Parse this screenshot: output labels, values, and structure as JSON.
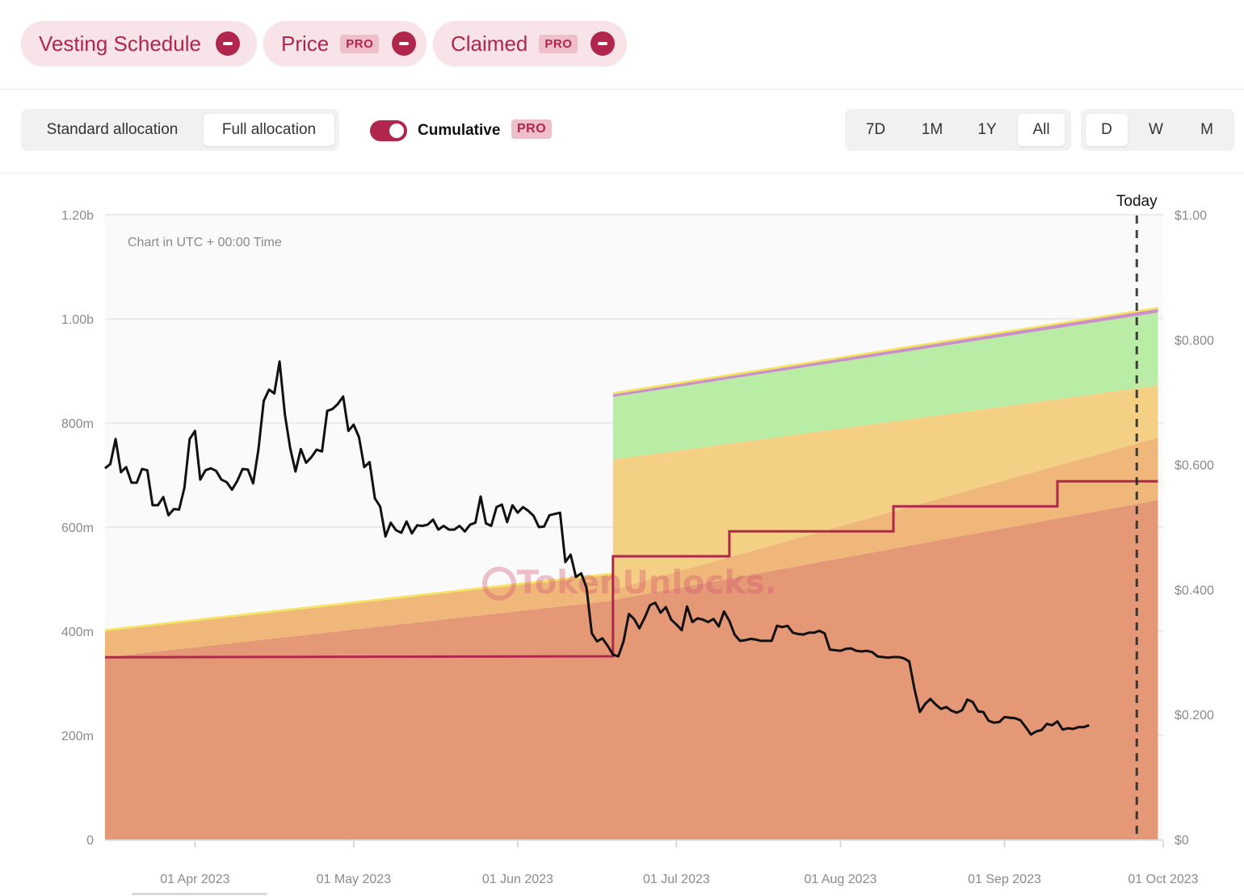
{
  "filters": {
    "chips": [
      {
        "label": "Vesting Schedule",
        "pro": false
      },
      {
        "label": "Price",
        "pro": true
      },
      {
        "label": "Claimed",
        "pro": true
      }
    ],
    "pro_label": "PRO"
  },
  "controls": {
    "allocation_tabs": [
      {
        "label": "Standard allocation",
        "active": false
      },
      {
        "label": "Full allocation",
        "active": true
      }
    ],
    "cumulative": {
      "label": "Cumulative",
      "on": true,
      "badge": "PRO"
    },
    "range_tabs": [
      {
        "label": "7D",
        "active": false
      },
      {
        "label": "1M",
        "active": false
      },
      {
        "label": "1Y",
        "active": false
      },
      {
        "label": "All",
        "active": true
      }
    ],
    "interval_tabs": [
      {
        "label": "D",
        "active": true
      },
      {
        "label": "W",
        "active": false
      },
      {
        "label": "M",
        "active": false
      }
    ]
  },
  "watermark": "TokenUnlocks.",
  "chart_data": {
    "type": "area",
    "note_text": "Chart in UTC + 00:00 Time",
    "today_label": "Today",
    "today_date": "2023-09-26",
    "x_range": [
      "2023-03-15",
      "2023-10-01"
    ],
    "x_ticks": [
      "01 Apr 2023",
      "01 May 2023",
      "01 Jun 2023",
      "01 Jul 2023",
      "01 Aug 2023",
      "01 Sep 2023",
      "01 Oct 2023"
    ],
    "x_tick_dates": [
      "2023-04-01",
      "2023-05-01",
      "2023-06-01",
      "2023-07-01",
      "2023-08-01",
      "2023-09-01",
      "2023-10-01"
    ],
    "y_left": {
      "ticks": [
        "0",
        "200m",
        "400m",
        "600m",
        "800m",
        "1.00b",
        "1.20b"
      ],
      "range": [
        0,
        1200000000
      ]
    },
    "y_right": {
      "ticks": [
        "$0",
        "$0.200",
        "$0.400",
        "$0.600",
        "$0.800",
        "$1.00"
      ],
      "range": [
        0,
        1.0
      ]
    },
    "grid": true,
    "stacked_areas": [
      {
        "color": "#e59876",
        "points": [
          [
            "2023-03-15",
            350000000
          ],
          [
            "2023-06-19",
            460000000
          ],
          [
            "2023-09-30",
            652000000
          ]
        ]
      },
      {
        "color": "#f0b77a",
        "points": [
          [
            "2023-03-15",
            50000000
          ],
          [
            "2023-06-18",
            50000000
          ],
          [
            "2023-06-19",
            20000000
          ],
          [
            "2023-09-30",
            120000000
          ]
        ]
      },
      {
        "color": "#f3d083",
        "points": [
          [
            "2023-03-15",
            0
          ],
          [
            "2023-06-18",
            0
          ],
          [
            "2023-06-19",
            250000000
          ],
          [
            "2023-09-30",
            100000000
          ]
        ]
      },
      {
        "color": "#b9eca5",
        "points": [
          [
            "2023-03-15",
            0
          ],
          [
            "2023-06-18",
            0
          ],
          [
            "2023-06-19",
            120000000
          ],
          [
            "2023-09-30",
            140000000
          ]
        ]
      },
      {
        "color": "#c991c8",
        "points": [
          [
            "2023-03-15",
            0
          ],
          [
            "2023-06-18",
            0
          ],
          [
            "2023-06-19",
            5000000
          ],
          [
            "2023-09-30",
            7000000
          ]
        ]
      },
      {
        "color": "#f6e45e",
        "points": [
          [
            "2023-03-15",
            4000000
          ],
          [
            "2023-09-30",
            4000000
          ]
        ]
      }
    ],
    "claimed_step": {
      "color": "#b0264d",
      "points": [
        [
          "2023-03-15",
          350000000
        ],
        [
          "2023-06-19",
          352000000
        ],
        [
          "2023-06-19",
          544000000
        ],
        [
          "2023-07-11",
          544000000
        ],
        [
          "2023-07-11",
          592000000
        ],
        [
          "2023-08-11",
          592000000
        ],
        [
          "2023-08-11",
          640000000
        ],
        [
          "2023-09-11",
          640000000
        ],
        [
          "2023-09-11",
          688000000
        ],
        [
          "2023-09-30",
          688000000
        ]
      ]
    },
    "price_series": {
      "color": "#111111",
      "points": [
        [
          "2023-03-15",
          0.594
        ],
        [
          "2023-03-16",
          0.601
        ],
        [
          "2023-03-17",
          0.641
        ],
        [
          "2023-03-18",
          0.588
        ],
        [
          "2023-03-19",
          0.596
        ],
        [
          "2023-03-20",
          0.571
        ],
        [
          "2023-03-21",
          0.571
        ],
        [
          "2023-03-22",
          0.593
        ],
        [
          "2023-03-23",
          0.591
        ],
        [
          "2023-03-24",
          0.535
        ],
        [
          "2023-03-25",
          0.535
        ],
        [
          "2023-03-26",
          0.548
        ],
        [
          "2023-03-27",
          0.519
        ],
        [
          "2023-03-28",
          0.529
        ],
        [
          "2023-03-29",
          0.528
        ],
        [
          "2023-03-30",
          0.563
        ],
        [
          "2023-03-31",
          0.641
        ],
        [
          "2023-04-01",
          0.654
        ],
        [
          "2023-04-02",
          0.576
        ],
        [
          "2023-04-03",
          0.591
        ],
        [
          "2023-04-04",
          0.594
        ],
        [
          "2023-04-05",
          0.59
        ],
        [
          "2023-04-06",
          0.576
        ],
        [
          "2023-04-07",
          0.572
        ],
        [
          "2023-04-08",
          0.56
        ],
        [
          "2023-04-09",
          0.574
        ],
        [
          "2023-04-10",
          0.593
        ],
        [
          "2023-04-11",
          0.592
        ],
        [
          "2023-04-12",
          0.57
        ],
        [
          "2023-04-13",
          0.624
        ],
        [
          "2023-04-14",
          0.702
        ],
        [
          "2023-04-15",
          0.72
        ],
        [
          "2023-04-16",
          0.714
        ],
        [
          "2023-04-17",
          0.765
        ],
        [
          "2023-04-18",
          0.68
        ],
        [
          "2023-04-19",
          0.626
        ],
        [
          "2023-04-20",
          0.589
        ],
        [
          "2023-04-21",
          0.625
        ],
        [
          "2023-04-22",
          0.603
        ],
        [
          "2023-04-23",
          0.612
        ],
        [
          "2023-04-24",
          0.624
        ],
        [
          "2023-04-25",
          0.621
        ],
        [
          "2023-04-26",
          0.686
        ],
        [
          "2023-04-27",
          0.689
        ],
        [
          "2023-04-28",
          0.697
        ],
        [
          "2023-04-29",
          0.709
        ],
        [
          "2023-04-30",
          0.654
        ],
        [
          "2023-05-01",
          0.664
        ],
        [
          "2023-05-02",
          0.644
        ],
        [
          "2023-05-03",
          0.596
        ],
        [
          "2023-05-04",
          0.604
        ],
        [
          "2023-05-05",
          0.546
        ],
        [
          "2023-05-06",
          0.533
        ],
        [
          "2023-05-07",
          0.485
        ],
        [
          "2023-05-08",
          0.507
        ],
        [
          "2023-05-09",
          0.495
        ],
        [
          "2023-05-10",
          0.491
        ],
        [
          "2023-05-11",
          0.509
        ],
        [
          "2023-05-12",
          0.49
        ],
        [
          "2023-05-13",
          0.503
        ],
        [
          "2023-05-14",
          0.502
        ],
        [
          "2023-05-15",
          0.504
        ],
        [
          "2023-05-16",
          0.512
        ],
        [
          "2023-05-17",
          0.496
        ],
        [
          "2023-05-18",
          0.502
        ],
        [
          "2023-05-19",
          0.496
        ],
        [
          "2023-05-20",
          0.496
        ],
        [
          "2023-05-21",
          0.502
        ],
        [
          "2023-05-22",
          0.493
        ],
        [
          "2023-05-23",
          0.504
        ],
        [
          "2023-05-24",
          0.507
        ],
        [
          "2023-05-25",
          0.549
        ],
        [
          "2023-05-26",
          0.506
        ],
        [
          "2023-05-27",
          0.502
        ],
        [
          "2023-05-28",
          0.532
        ],
        [
          "2023-05-29",
          0.536
        ],
        [
          "2023-05-30",
          0.508
        ],
        [
          "2023-05-31",
          0.535
        ],
        [
          "2023-06-01",
          0.523
        ],
        [
          "2023-06-02",
          0.532
        ],
        [
          "2023-06-03",
          0.526
        ],
        [
          "2023-06-04",
          0.518
        ],
        [
          "2023-06-05",
          0.5
        ],
        [
          "2023-06-06",
          0.501
        ],
        [
          "2023-06-07",
          0.519
        ],
        [
          "2023-06-08",
          0.521
        ],
        [
          "2023-06-09",
          0.523
        ],
        [
          "2023-06-10",
          0.444
        ],
        [
          "2023-06-11",
          0.456
        ],
        [
          "2023-06-12",
          0.42
        ],
        [
          "2023-06-13",
          0.426
        ],
        [
          "2023-06-14",
          0.403
        ],
        [
          "2023-06-15",
          0.33
        ],
        [
          "2023-06-16",
          0.317
        ],
        [
          "2023-06-17",
          0.322
        ],
        [
          "2023-06-18",
          0.31
        ],
        [
          "2023-06-19",
          0.296
        ],
        [
          "2023-06-20",
          0.293
        ],
        [
          "2023-06-21",
          0.317
        ],
        [
          "2023-06-22",
          0.361
        ],
        [
          "2023-06-23",
          0.353
        ],
        [
          "2023-06-24",
          0.338
        ],
        [
          "2023-06-25",
          0.355
        ],
        [
          "2023-06-26",
          0.375
        ],
        [
          "2023-06-27",
          0.379
        ],
        [
          "2023-06-28",
          0.363
        ],
        [
          "2023-06-29",
          0.372
        ],
        [
          "2023-06-30",
          0.352
        ],
        [
          "2023-07-01",
          0.344
        ],
        [
          "2023-07-02",
          0.335
        ],
        [
          "2023-07-03",
          0.373
        ],
        [
          "2023-07-04",
          0.348
        ],
        [
          "2023-07-05",
          0.354
        ],
        [
          "2023-07-06",
          0.352
        ],
        [
          "2023-07-07",
          0.348
        ],
        [
          "2023-07-08",
          0.353
        ],
        [
          "2023-07-09",
          0.341
        ],
        [
          "2023-07-10",
          0.365
        ],
        [
          "2023-07-11",
          0.35
        ],
        [
          "2023-07-12",
          0.328
        ],
        [
          "2023-07-13",
          0.318
        ],
        [
          "2023-07-14",
          0.319
        ],
        [
          "2023-07-15",
          0.321
        ],
        [
          "2023-07-16",
          0.32
        ],
        [
          "2023-07-17",
          0.318
        ],
        [
          "2023-07-18",
          0.318
        ],
        [
          "2023-07-19",
          0.318
        ],
        [
          "2023-07-20",
          0.342
        ],
        [
          "2023-07-21",
          0.34
        ],
        [
          "2023-07-22",
          0.342
        ],
        [
          "2023-07-23",
          0.331
        ],
        [
          "2023-07-24",
          0.329
        ],
        [
          "2023-07-25",
          0.328
        ],
        [
          "2023-07-26",
          0.331
        ],
        [
          "2023-07-27",
          0.331
        ],
        [
          "2023-07-28",
          0.334
        ],
        [
          "2023-07-29",
          0.33
        ],
        [
          "2023-07-30",
          0.304
        ],
        [
          "2023-07-31",
          0.303
        ],
        [
          "2023-08-01",
          0.302
        ],
        [
          "2023-08-02",
          0.305
        ],
        [
          "2023-08-03",
          0.306
        ],
        [
          "2023-08-04",
          0.302
        ],
        [
          "2023-08-05",
          0.301
        ],
        [
          "2023-08-06",
          0.302
        ],
        [
          "2023-08-07",
          0.3
        ],
        [
          "2023-08-08",
          0.293
        ],
        [
          "2023-08-09",
          0.292
        ],
        [
          "2023-08-10",
          0.291
        ],
        [
          "2023-08-11",
          0.292
        ],
        [
          "2023-08-12",
          0.292
        ],
        [
          "2023-08-13",
          0.29
        ],
        [
          "2023-08-14",
          0.285
        ],
        [
          "2023-08-15",
          0.24
        ],
        [
          "2023-08-16",
          0.204
        ],
        [
          "2023-08-17",
          0.217
        ],
        [
          "2023-08-18",
          0.225
        ],
        [
          "2023-08-19",
          0.216
        ],
        [
          "2023-08-20",
          0.209
        ],
        [
          "2023-08-21",
          0.212
        ],
        [
          "2023-08-22",
          0.206
        ],
        [
          "2023-08-23",
          0.203
        ],
        [
          "2023-08-24",
          0.207
        ],
        [
          "2023-08-25",
          0.224
        ],
        [
          "2023-08-26",
          0.22
        ],
        [
          "2023-08-27",
          0.205
        ],
        [
          "2023-08-28",
          0.204
        ],
        [
          "2023-08-29",
          0.19
        ],
        [
          "2023-08-30",
          0.187
        ],
        [
          "2023-08-31",
          0.188
        ],
        [
          "2023-09-01",
          0.196
        ],
        [
          "2023-09-02",
          0.195
        ],
        [
          "2023-09-03",
          0.194
        ],
        [
          "2023-09-04",
          0.191
        ],
        [
          "2023-09-05",
          0.18
        ],
        [
          "2023-09-06",
          0.168
        ],
        [
          "2023-09-07",
          0.173
        ],
        [
          "2023-09-08",
          0.175
        ],
        [
          "2023-09-09",
          0.185
        ],
        [
          "2023-09-10",
          0.183
        ],
        [
          "2023-09-11",
          0.189
        ],
        [
          "2023-09-12",
          0.176
        ],
        [
          "2023-09-13",
          0.178
        ],
        [
          "2023-09-14",
          0.177
        ],
        [
          "2023-09-15",
          0.18
        ],
        [
          "2023-09-16",
          0.18
        ],
        [
          "2023-09-17",
          0.183
        ]
      ]
    }
  }
}
